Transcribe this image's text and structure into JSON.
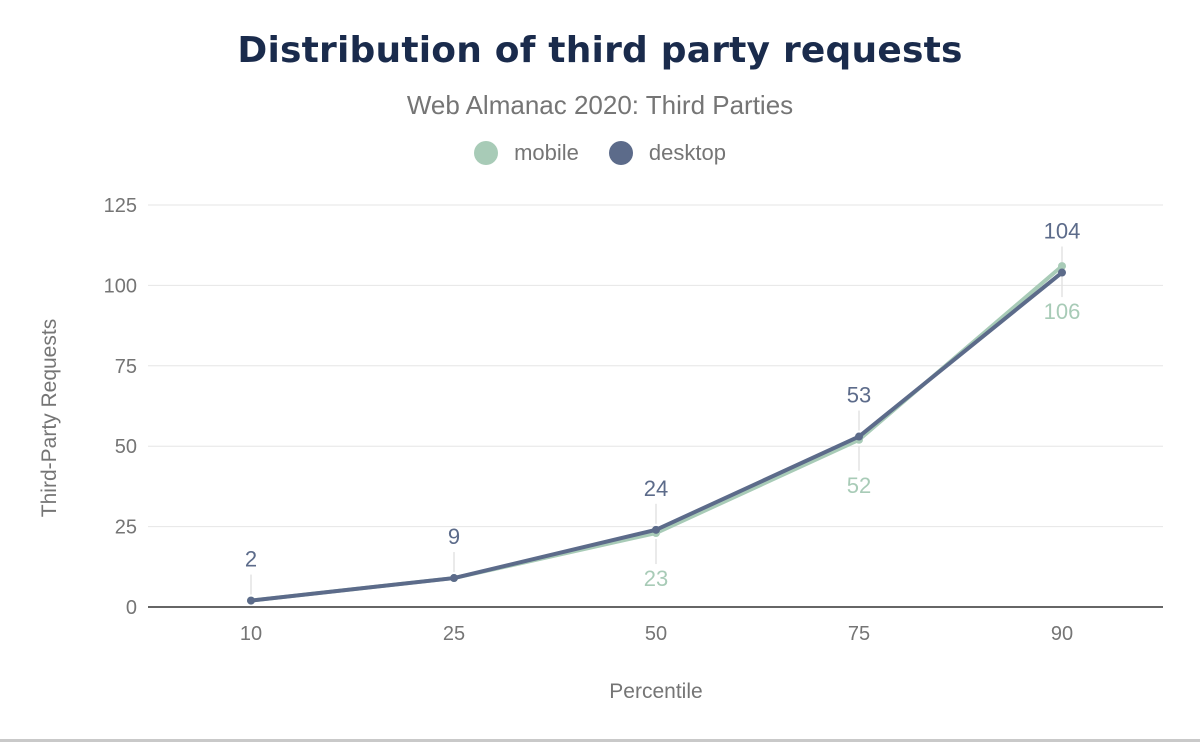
{
  "colors": {
    "mobile": "#a8cbb7",
    "desktop": "#5c6b8a",
    "title": "#1a2b4c",
    "text": "#757575",
    "grid": "#e6e6e6",
    "axis": "#333333"
  },
  "chart_data": {
    "type": "line",
    "title": "Distribution of third party requests",
    "subtitle": "Web Almanac 2020: Third Parties",
    "xlabel": "Percentile",
    "ylabel": "Third-Party Requests",
    "categories": [
      "10",
      "25",
      "50",
      "75",
      "90"
    ],
    "ylim": [
      0,
      125
    ],
    "yticks": [
      0,
      25,
      50,
      75,
      100,
      125
    ],
    "grid": true,
    "legend_position": "top-center",
    "series": [
      {
        "name": "mobile",
        "values": [
          2,
          9,
          23,
          52,
          106
        ],
        "labels": [
          "",
          "",
          "23",
          "52",
          "106"
        ],
        "color": "#a8cbb7"
      },
      {
        "name": "desktop",
        "values": [
          2,
          9,
          24,
          53,
          104
        ],
        "labels": [
          "2",
          "9",
          "24",
          "53",
          "104"
        ],
        "color": "#5c6b8a"
      }
    ]
  }
}
